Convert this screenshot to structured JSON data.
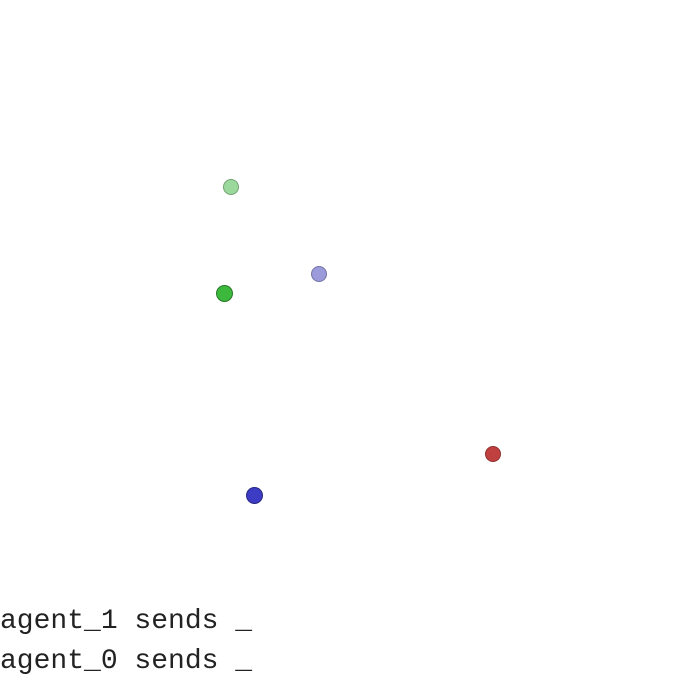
{
  "entities": [
    {
      "name": "green-landmark",
      "kind": "landmark",
      "color": "#9bd89b"
    },
    {
      "name": "lavender-landmark",
      "kind": "landmark",
      "color": "#9b9bdb"
    },
    {
      "name": "green-agent",
      "kind": "agent",
      "color": "#3cb83c"
    },
    {
      "name": "red-landmark",
      "kind": "landmark",
      "color": "#c04040"
    },
    {
      "name": "blue-agent",
      "kind": "agent",
      "color": "#3c3cc4"
    }
  ],
  "messages": [
    {
      "text": "agent_1 sends _"
    },
    {
      "text": "agent_0 sends _"
    }
  ]
}
